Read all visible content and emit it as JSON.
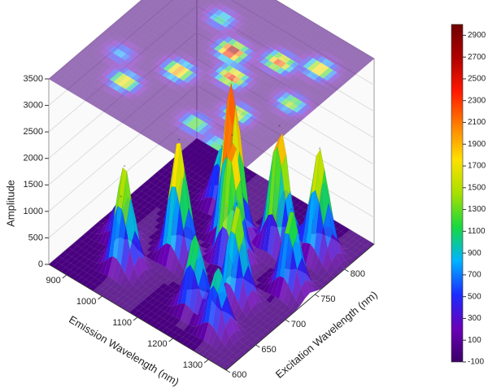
{
  "chart_data": {
    "type": "surface3d",
    "xlabel": "Emission Wavelength (nm)",
    "ylabel": "Excitation Wavelength (nm)",
    "zlabel": "Amplitude",
    "xlim": [
      850,
      1350
    ],
    "xticks": [
      900,
      1000,
      1100,
      1200,
      1300
    ],
    "ylim": [
      600,
      850
    ],
    "yticks": [
      600,
      650,
      700,
      750,
      800
    ],
    "zlim": [
      0,
      3500
    ],
    "zticks": [
      0,
      500,
      1000,
      1500,
      2000,
      2500,
      3000,
      3500
    ],
    "colorbar": {
      "lim": [
        -100,
        3000
      ],
      "ticks": [
        -100,
        100,
        300,
        500,
        700,
        900,
        1100,
        1300,
        1500,
        1700,
        1900,
        2100,
        2300,
        2500,
        2700,
        2900
      ]
    },
    "peaks": {
      "x": [
        920,
        980,
        1050,
        1100,
        1150,
        1200,
        1230,
        1280,
        1300,
        1180,
        1020,
        1260
      ],
      "y": [
        680,
        650,
        700,
        760,
        730,
        780,
        690,
        800,
        740,
        650,
        790,
        640
      ],
      "values": [
        800,
        1900,
        2200,
        2950,
        2400,
        2300,
        1800,
        2000,
        1500,
        1400,
        1100,
        1200
      ]
    },
    "top_projection": true
  }
}
